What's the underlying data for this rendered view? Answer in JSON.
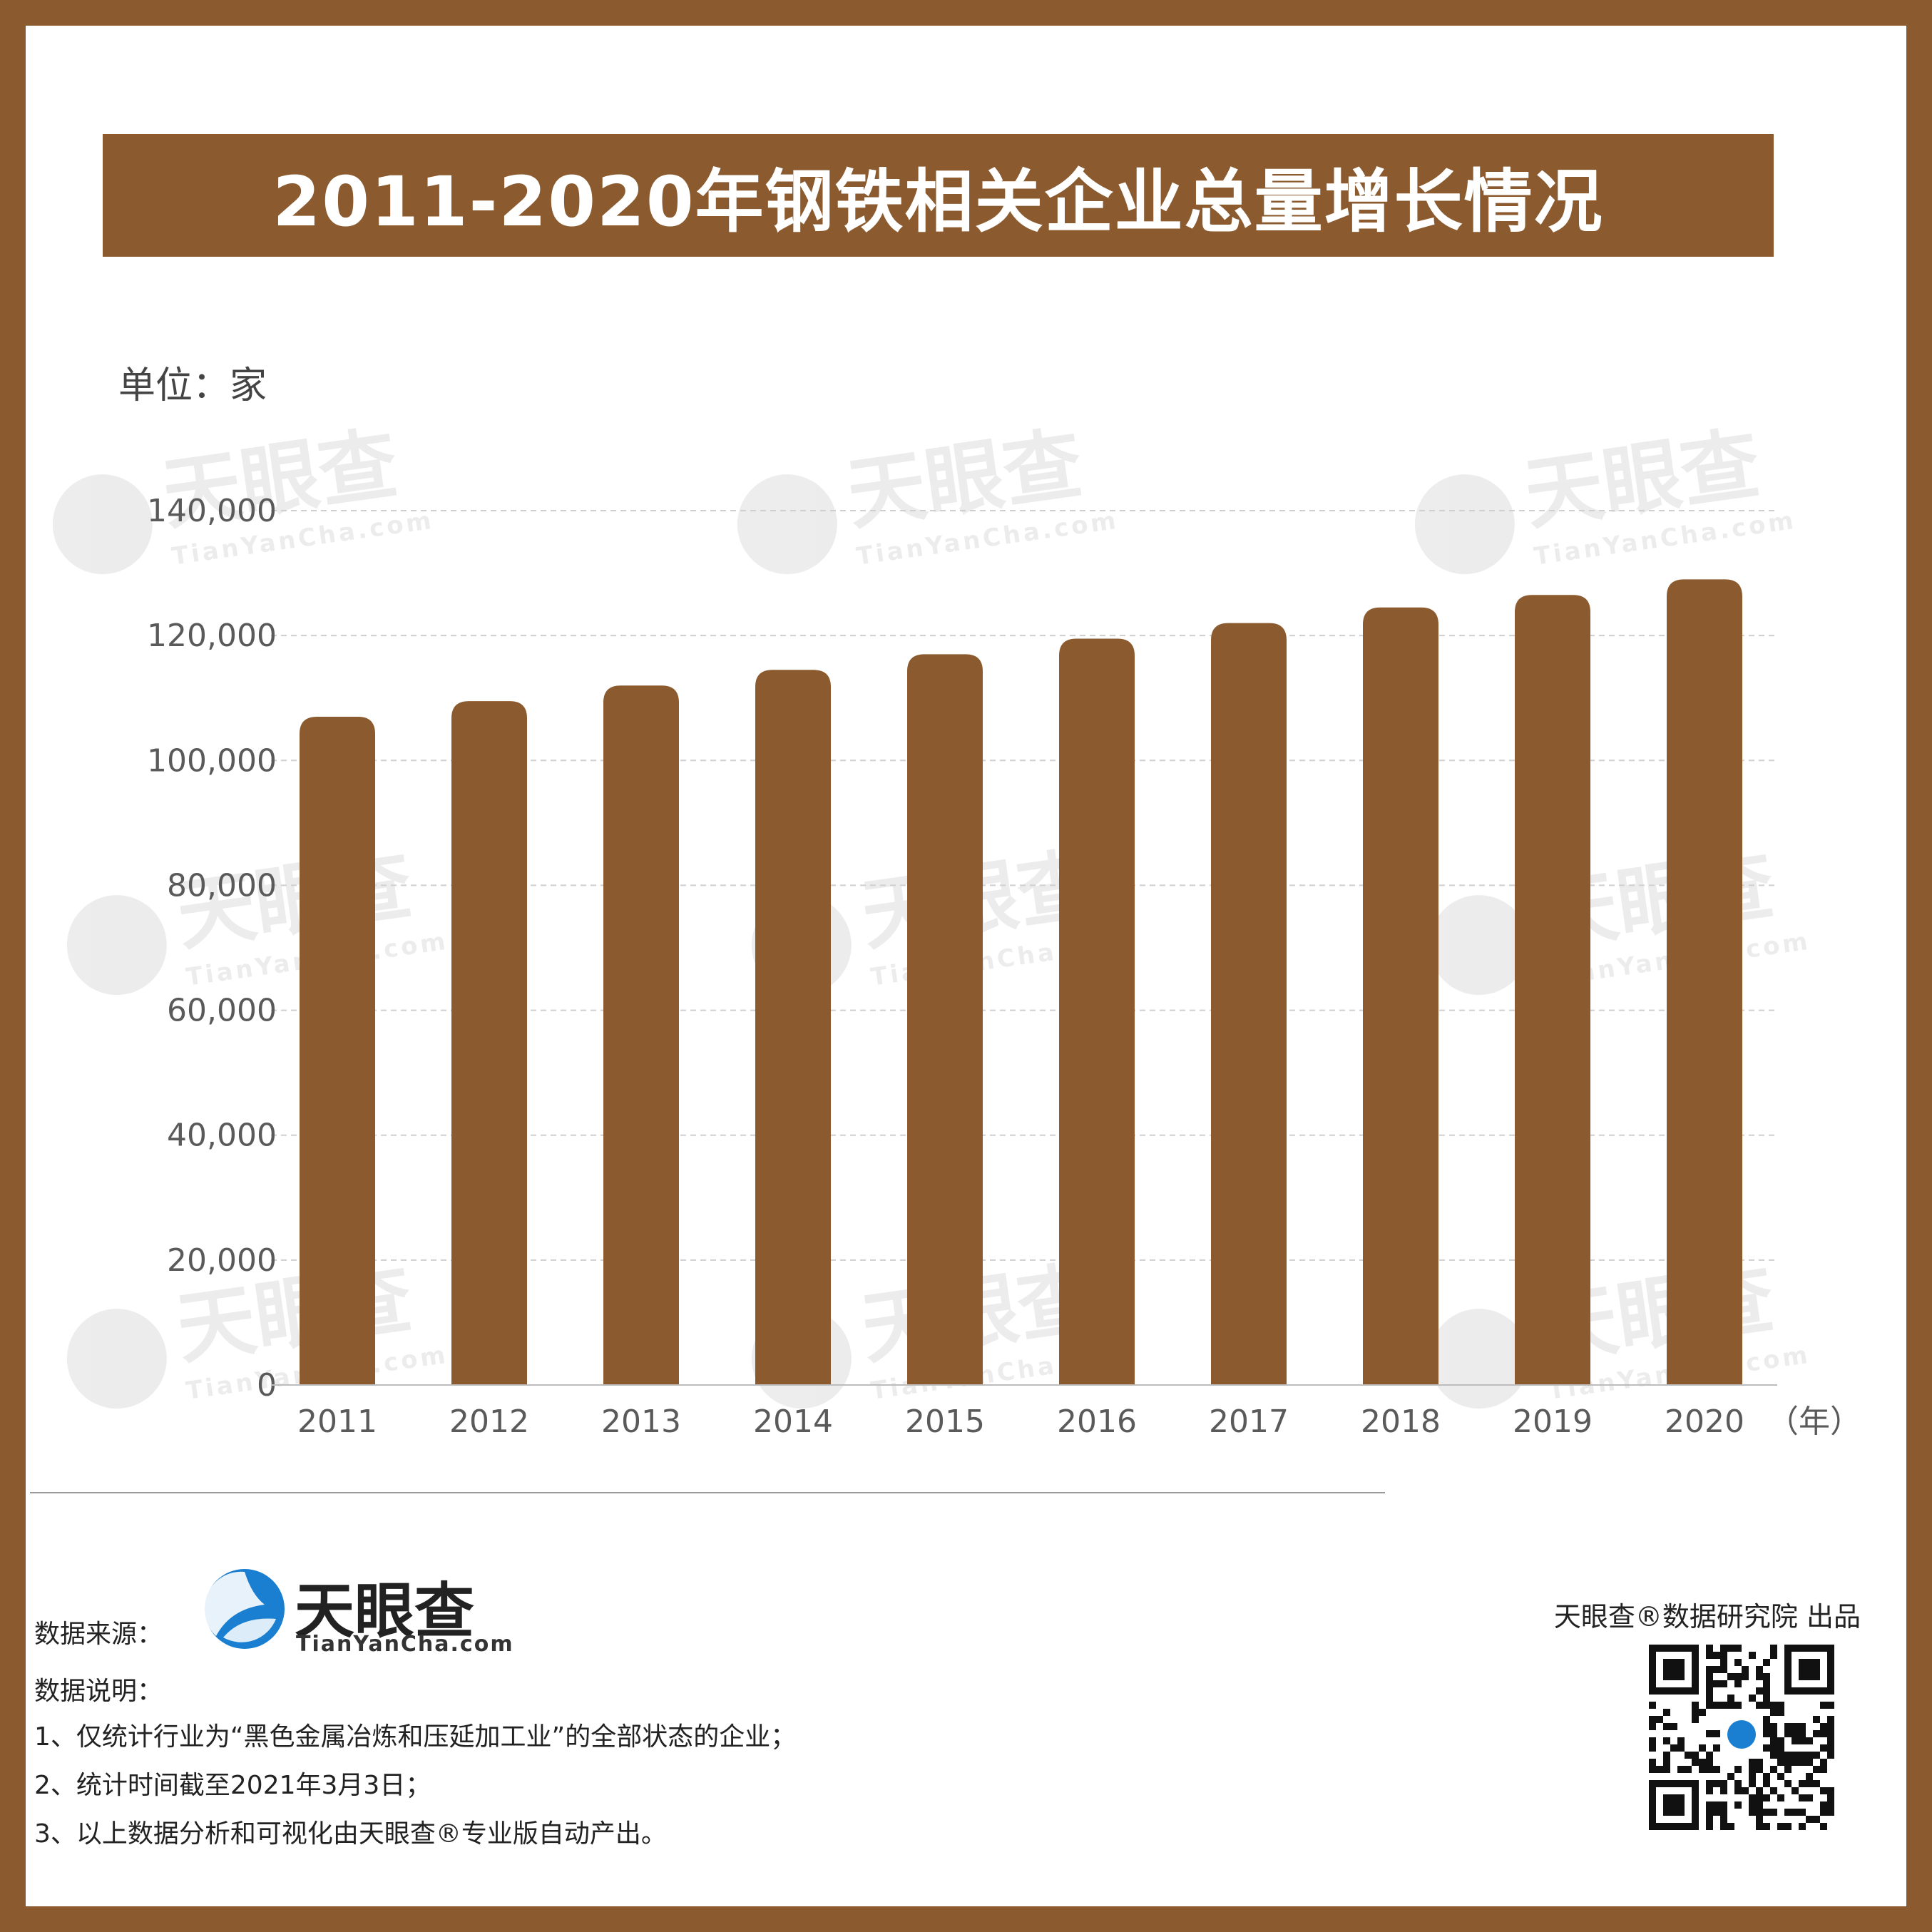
{
  "title": "2011-2020年钢铁相关企业总量增长情况",
  "unit_label": "单位：家",
  "x_unit": "（年）",
  "colors": {
    "bar": "#8b5a2e",
    "frame": "#8b5a2e",
    "grid": "#cfcfcf"
  },
  "watermark": {
    "name": "天眼查",
    "url": "TianYanCha.com"
  },
  "chart_data": {
    "type": "bar",
    "categories": [
      "2011",
      "2012",
      "2013",
      "2014",
      "2015",
      "2016",
      "2017",
      "2018",
      "2019",
      "2020"
    ],
    "values": [
      107000,
      109500,
      112000,
      114500,
      117000,
      119500,
      122000,
      124500,
      126500,
      129000
    ],
    "ylim": [
      0,
      140000
    ],
    "yticks": [
      0,
      20000,
      40000,
      60000,
      80000,
      100000,
      120000,
      140000
    ],
    "ytick_labels": [
      "0",
      "20,000",
      "40,000",
      "60,000",
      "80,000",
      "100,000",
      "120,000",
      "140,000"
    ],
    "grid": true,
    "xlabel": "（年）",
    "ylabel": "单位：家"
  },
  "footer": {
    "source_label": "数据来源：",
    "logo_name": "天眼查",
    "logo_url": "TianYanCha.com",
    "notes_title": "数据说明：",
    "notes": [
      "1、仅统计行业为“黑色金属冶炼和压延加工业”的全部状态的企业；",
      "2、统计时间截至2021年3月3日；",
      "3、以上数据分析和可视化由天眼查®专业版自动产出。"
    ],
    "producer": "天眼查®数据研究院 出品"
  }
}
